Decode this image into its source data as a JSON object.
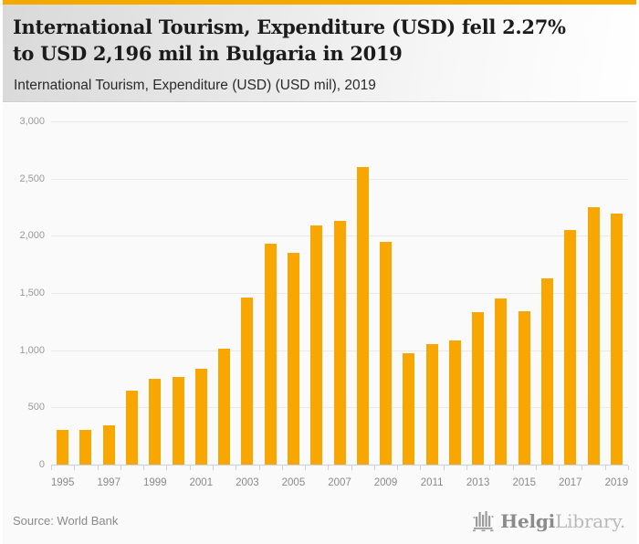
{
  "page": {
    "accent_color": "#F5A800",
    "title_line1": "International Tourism, Expenditure (USD) fell 2.27%",
    "title_line2": "to USD 2,196 mil in Bulgaria in 2019",
    "subtitle": "International Tourism, Expenditure (USD) (USD mil), 2019"
  },
  "footer": {
    "source": "Source: World Bank",
    "logo_bold": "Helgi",
    "logo_light": "Library."
  },
  "chart_data": {
    "type": "bar",
    "title": "International Tourism, Expenditure (USD) fell 2.27% to USD 2,196 mil in Bulgaria in 2019",
    "subtitle": "International Tourism, Expenditure (USD) (USD mil), 2019",
    "xlabel": "",
    "ylabel": "",
    "ylim": [
      0,
      3000
    ],
    "ytick_interval": 500,
    "ytick_labels": [
      "0",
      "500",
      "1,000",
      "1,500",
      "2,000",
      "2,500",
      "3,000"
    ],
    "grid": true,
    "legend": false,
    "bar_color": "#F8A701",
    "axis_color": "#c9d0e8",
    "gridline_color": "#e9e9e9",
    "categories": [
      1995,
      1996,
      1997,
      1998,
      1999,
      2000,
      2001,
      2002,
      2003,
      2004,
      2005,
      2006,
      2007,
      2008,
      2009,
      2010,
      2011,
      2012,
      2013,
      2014,
      2015,
      2016,
      2017,
      2018,
      2019
    ],
    "values": [
      305,
      300,
      345,
      645,
      750,
      765,
      835,
      1015,
      1460,
      1930,
      1850,
      2090,
      2130,
      2600,
      1950,
      970,
      1055,
      1085,
      1335,
      1455,
      1340,
      1630,
      2050,
      2247,
      2196
    ],
    "xtick_labels": [
      "1995",
      "1997",
      "1999",
      "2001",
      "2003",
      "2005",
      "2007",
      "2009",
      "2011",
      "2013",
      "2015",
      "2017",
      "2019"
    ]
  }
}
